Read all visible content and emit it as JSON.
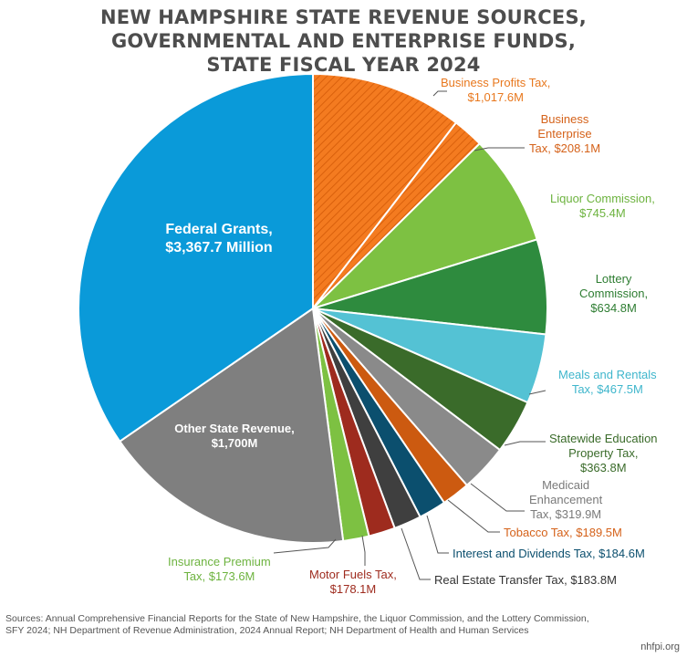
{
  "title": {
    "line1": "NEW HAMPSHIRE STATE REVENUE SOURCES,",
    "line2": "GOVERNMENTAL AND ENTERPRISE FUNDS,",
    "line3": "STATE FISCAL YEAR 2024"
  },
  "chart_data": {
    "type": "pie",
    "unit": "$ Millions",
    "slices": [
      {
        "label": "Business Profits Tax, $1,017.6M",
        "value": 1017.6,
        "color": "#f47b20",
        "pattern": "hatch"
      },
      {
        "label": "Business Enterprise Tax, $208.1M",
        "value": 208.1,
        "color": "#f47b20",
        "pattern": "hatch"
      },
      {
        "label": "Liquor Commission, $745.4M",
        "value": 745.4,
        "color": "#7dc142"
      },
      {
        "label": "Lottery Commission, $634.8M",
        "value": 634.8,
        "color": "#2e8b3e"
      },
      {
        "label": "Meals and Rentals Tax, $467.5M",
        "value": 467.5,
        "color": "#54c2d4"
      },
      {
        "label": "Statewide Education Property Tax, $363.8M",
        "value": 363.8,
        "color": "#3a6b2a"
      },
      {
        "label": "Medicaid Enhancement Tax, $319.9M",
        "value": 319.9,
        "color": "#8a8a8a"
      },
      {
        "label": "Tobacco Tax, $189.5M",
        "value": 189.5,
        "color": "#cc5a10"
      },
      {
        "label": "Interest and Dividends Tax, $184.6M",
        "value": 184.6,
        "color": "#0b4f6e"
      },
      {
        "label": "Real Estate Transfer Tax, $183.8M",
        "value": 183.8,
        "color": "#3f3f3f"
      },
      {
        "label": "Motor Fuels Tax, $178.1M",
        "value": 178.1,
        "color": "#9e2b1e"
      },
      {
        "label": "Insurance Premium Tax, $173.6M",
        "value": 173.6,
        "color": "#7dc142"
      },
      {
        "label": "Other State Revenue, $1,700M",
        "value": 1700,
        "color": "#7f7f7f"
      },
      {
        "label": "Federal Grants, $3,367.7 Million",
        "value": 3367.7,
        "color": "#0a9ad9"
      }
    ]
  },
  "labels": {
    "bpt": [
      "Business Profits Tax,",
      "$1,017.6M"
    ],
    "bet": [
      "Business",
      "Enterprise",
      "Tax, $208.1M"
    ],
    "liquor": [
      "Liquor Commission,",
      "$745.4M"
    ],
    "lottery": [
      "Lottery",
      "Commission,",
      "$634.8M"
    ],
    "meals": [
      "Meals and Rentals",
      "Tax, $467.5M"
    ],
    "sept": [
      "Statewide Education",
      "Property Tax,",
      "$363.8M"
    ],
    "medicaid": [
      "Medicaid",
      "Enhancement",
      "Tax, $319.9M"
    ],
    "tobacco": "Tobacco Tax, $189.5M",
    "interest": "Interest and Dividends Tax, $184.6M",
    "realestate": "Real Estate Transfer Tax, $183.8M",
    "motorfuels": [
      "Motor Fuels Tax,",
      "$178.1M"
    ],
    "insurance": [
      "Insurance Premium",
      "Tax, $173.6M"
    ],
    "other": [
      "Other State Revenue,",
      "$1,700M"
    ],
    "federal": [
      "Federal Grants,",
      "$3,367.7 Million"
    ]
  },
  "label_colors": {
    "bpt": "#e8781e",
    "bet": "#d5621a",
    "liquor": "#6db33f",
    "lottery": "#2e7d32",
    "meals": "#3fb6cc",
    "sept": "#3a6b2a",
    "medicaid": "#7a7a7a",
    "tobacco": "#d5621a",
    "interest": "#0b4f6e",
    "realestate": "#333333",
    "motorfuels": "#9e2b1e",
    "insurance": "#6db33f"
  },
  "sources": {
    "line1": "Sources: Annual Comprehensive Financial Reports for the State of New Hampshire, the Liquor Commission, and the Lottery Commission,",
    "line2": "SFY 2024; NH Department of Revenue Administration, 2024 Annual Report; NH Department of Health and Human Services"
  },
  "credit": "nhfpi.org"
}
